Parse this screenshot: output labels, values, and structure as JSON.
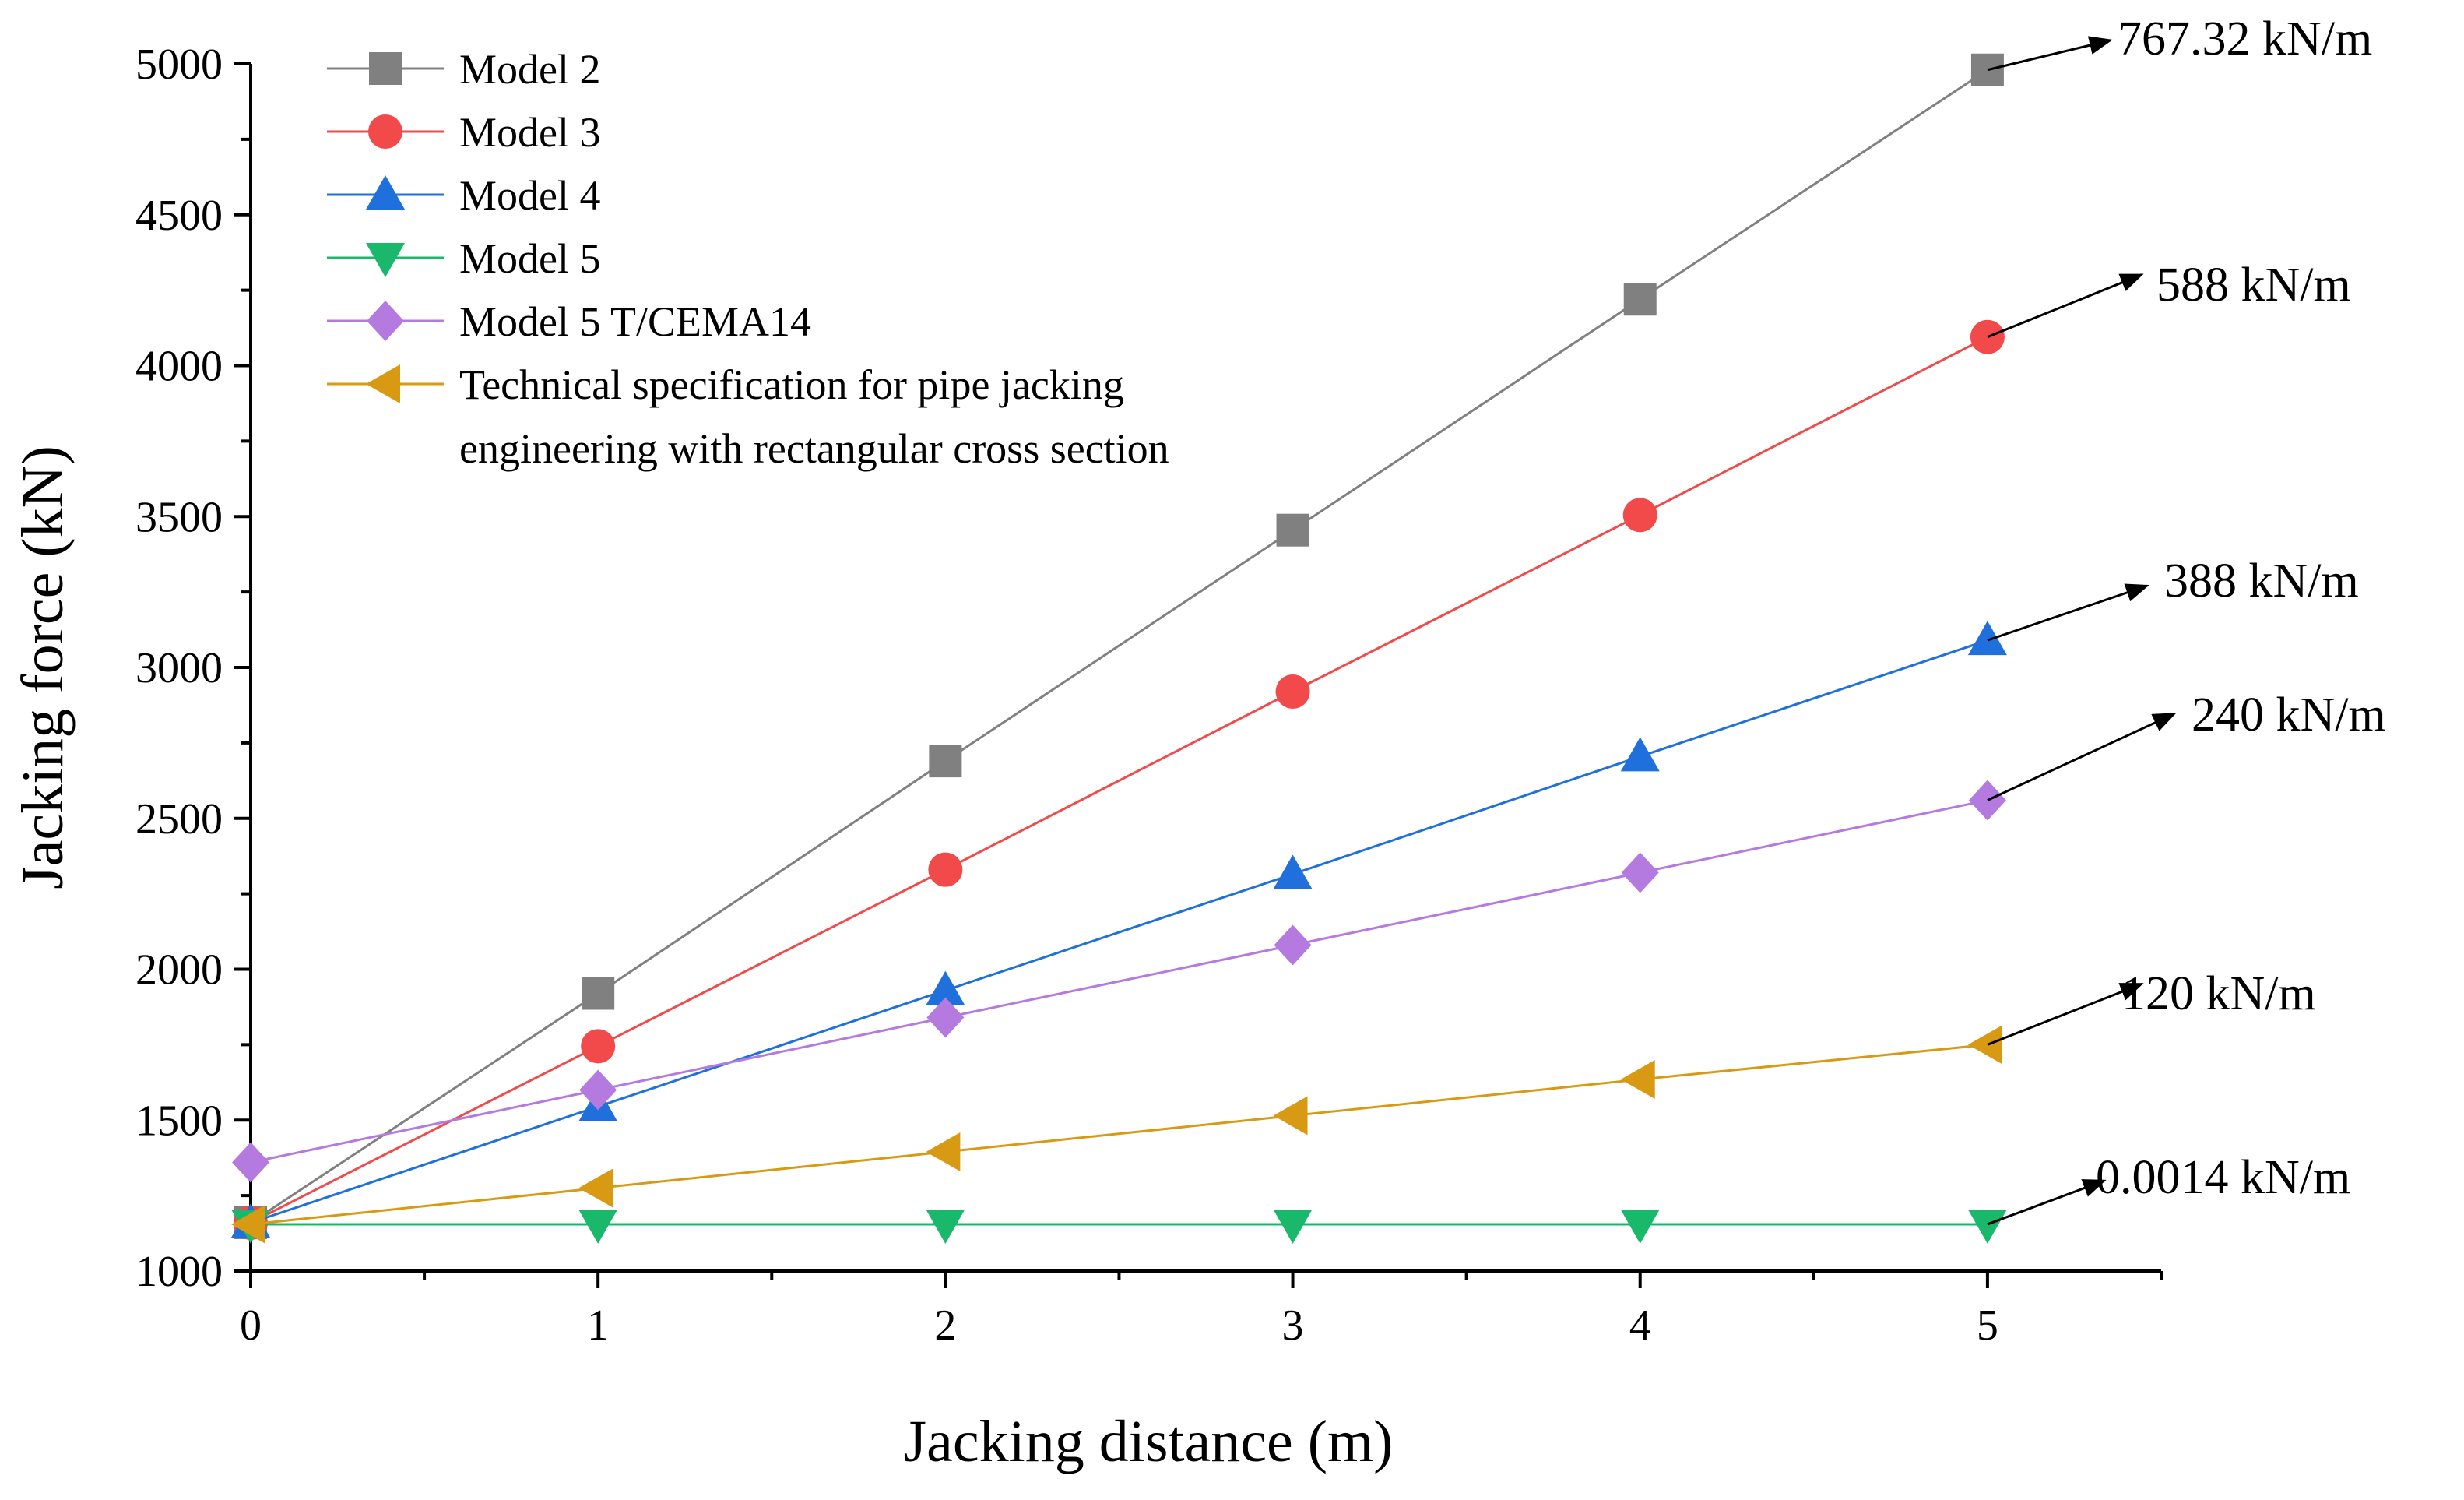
{
  "chart_data": {
    "type": "line",
    "title": "",
    "xlabel": "Jacking distance (m)",
    "ylabel": "Jacking force (kN)",
    "xlim": [
      0,
      5.5
    ],
    "ylim": [
      1000,
      5000
    ],
    "x_ticks": [
      "0",
      "1",
      "2",
      "3",
      "4",
      "5"
    ],
    "y_ticks": [
      "1000",
      "1500",
      "2000",
      "2500",
      "3000",
      "3500",
      "4000",
      "4500",
      "5000"
    ],
    "x": [
      0,
      1,
      2,
      3,
      4,
      5
    ],
    "legend_position": "top-left",
    "series": [
      {
        "name": "Model 2",
        "color": "#808080",
        "marker": "square",
        "values": [
          1160,
          1920,
          2690,
          3455,
          4220,
          4980
        ]
      },
      {
        "name": "Model 3",
        "color": "#f24a4a",
        "marker": "circle",
        "values": [
          1160,
          1745,
          2330,
          2920,
          3505,
          4095
        ]
      },
      {
        "name": "Model 4",
        "color": "#1f6fdd",
        "marker": "triangle-up",
        "values": [
          1160,
          1545,
          1930,
          2315,
          2705,
          3090
        ]
      },
      {
        "name": "Model 5",
        "color": "#19b86a",
        "marker": "triangle-down",
        "values": [
          1155,
          1155,
          1155,
          1155,
          1155,
          1155
        ]
      },
      {
        "name": "Model 5 T/CEMA14",
        "color": "#b57ae0",
        "marker": "diamond",
        "values": [
          1360,
          1600,
          1840,
          2080,
          2320,
          2560
        ]
      },
      {
        "name": "Technical specification for pipe jacking\nengineering with rectangular cross section",
        "color": "#d99a13",
        "marker": "triangle-left",
        "values": [
          1155,
          1275,
          1395,
          1515,
          1635,
          1750
        ]
      }
    ],
    "annotations": [
      {
        "text": "767.32 kN/m",
        "series": "Model 2"
      },
      {
        "text": "588 kN/m",
        "series": "Model 3"
      },
      {
        "text": "388 kN/m",
        "series": "Model 4"
      },
      {
        "text": "240 kN/m",
        "series": "Model 5 T/CEMA14"
      },
      {
        "text": "120 kN/m",
        "series": "Technical specification for pipe jacking\nengineering with rectangular cross section"
      },
      {
        "text": "0.0014 kN/m",
        "series": "Model 5"
      }
    ]
  }
}
